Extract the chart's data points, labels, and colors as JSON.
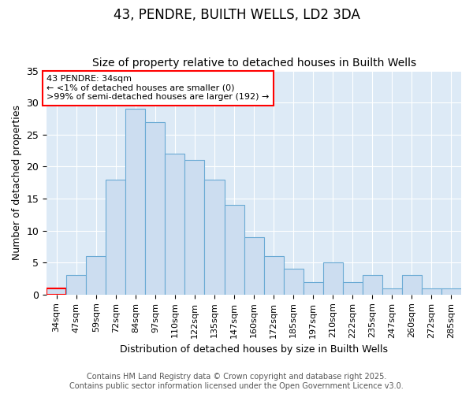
{
  "title": "43, PENDRE, BUILTH WELLS, LD2 3DA",
  "subtitle": "Size of property relative to detached houses in Builth Wells",
  "xlabel": "Distribution of detached houses by size in Builth Wells",
  "ylabel": "Number of detached properties",
  "categories": [
    "34sqm",
    "47sqm",
    "59sqm",
    "72sqm",
    "84sqm",
    "97sqm",
    "110sqm",
    "122sqm",
    "135sqm",
    "147sqm",
    "160sqm",
    "172sqm",
    "185sqm",
    "197sqm",
    "210sqm",
    "222sqm",
    "235sqm",
    "247sqm",
    "260sqm",
    "272sqm",
    "285sqm"
  ],
  "values": [
    1,
    3,
    6,
    18,
    29,
    27,
    22,
    21,
    18,
    14,
    9,
    6,
    4,
    2,
    5,
    2,
    3,
    1,
    3,
    1,
    1
  ],
  "bar_color": "#ccddf0",
  "bar_edge_color": "#6aaad4",
  "annotation_text": "43 PENDRE: 34sqm\n← <1% of detached houses are smaller (0)\n>99% of semi-detached houses are larger (192) →",
  "annotation_box_facecolor": "white",
  "annotation_box_edgecolor": "red",
  "highlight_bar_index": 0,
  "highlight_bar_edgecolor": "red",
  "ylim": [
    0,
    35
  ],
  "yticks": [
    0,
    5,
    10,
    15,
    20,
    25,
    30,
    35
  ],
  "background_color": "#ddeaf6",
  "plot_bg_color": "#ddeaf6",
  "footer_text": "Contains HM Land Registry data © Crown copyright and database right 2025.\nContains public sector information licensed under the Open Government Licence v3.0.",
  "title_fontsize": 12,
  "subtitle_fontsize": 10,
  "label_fontsize": 9,
  "tick_fontsize": 8,
  "annotation_fontsize": 8,
  "footer_fontsize": 7
}
